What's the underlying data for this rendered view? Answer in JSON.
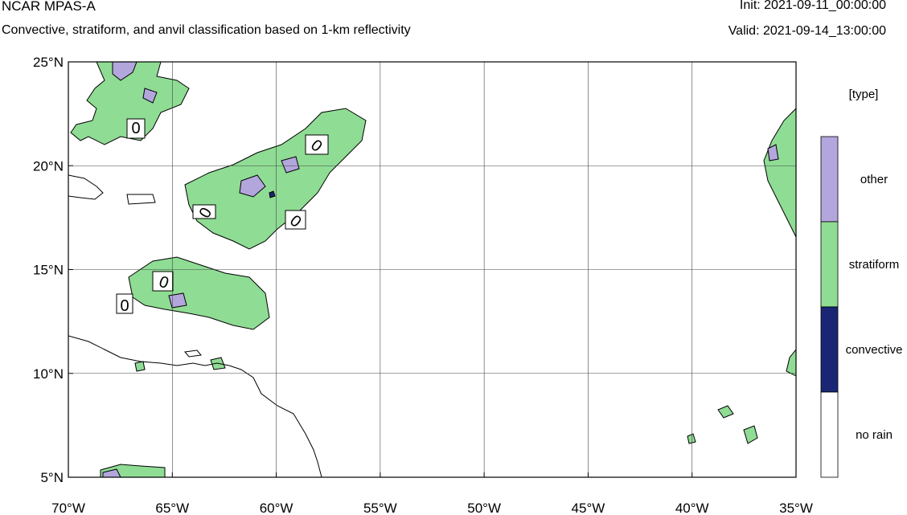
{
  "header": {
    "title": "NCAR MPAS-A",
    "subtitle": "Convective, stratiform, and anvil classification based on 1-km reflectivity",
    "init": "Init: 2021-09-11_00:00:00",
    "valid": "Valid: 2021-09-14_13:00:00"
  },
  "map": {
    "lon_range": [
      -70,
      -35
    ],
    "lat_range": [
      5,
      25
    ],
    "lon_ticks": [
      {
        "value": -70,
        "label": "70°W"
      },
      {
        "value": -65,
        "label": "65°W"
      },
      {
        "value": -60,
        "label": "60°W"
      },
      {
        "value": -55,
        "label": "55°W"
      },
      {
        "value": -50,
        "label": "50°W"
      },
      {
        "value": -45,
        "label": "45°W"
      },
      {
        "value": -40,
        "label": "40°W"
      },
      {
        "value": -35,
        "label": "35°W"
      }
    ],
    "lat_ticks": [
      {
        "value": 25,
        "label": "25°N"
      },
      {
        "value": 20,
        "label": "20°N"
      },
      {
        "value": 15,
        "label": "15°N"
      },
      {
        "value": 10,
        "label": "10°N"
      },
      {
        "value": 5,
        "label": "5°N"
      }
    ],
    "grid": true,
    "contour_label": "0"
  },
  "legend": {
    "title": "[type]",
    "categories": [
      {
        "label": "other",
        "color": "#b3a6dd"
      },
      {
        "label": "stratiform",
        "color": "#8fdc94"
      },
      {
        "label": "convective",
        "color": "#1a2674"
      },
      {
        "label": "no rain",
        "color": "#ffffff"
      }
    ]
  }
}
